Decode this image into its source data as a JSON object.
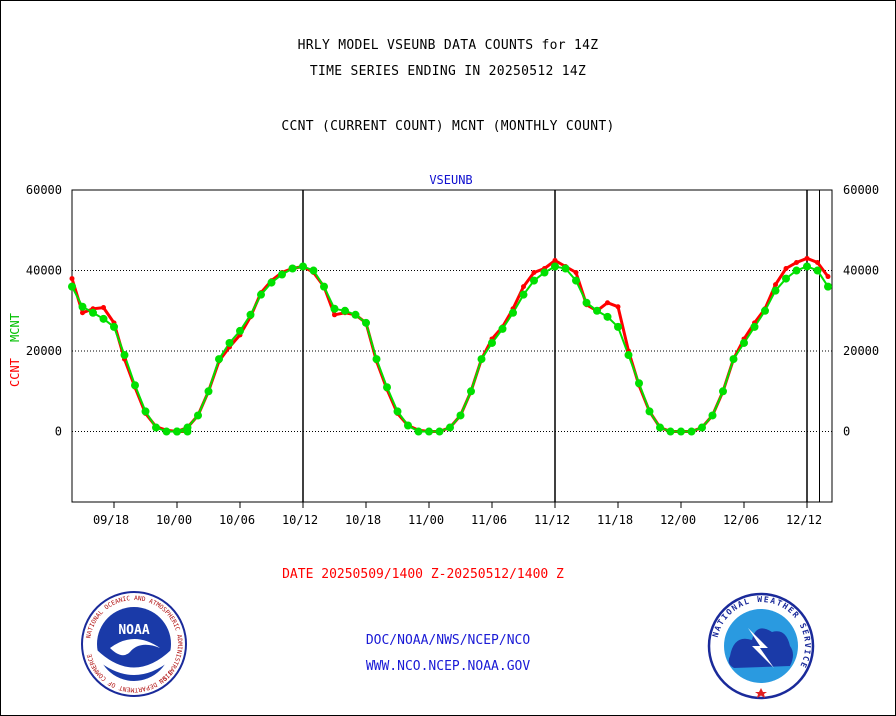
{
  "header": {
    "title_line1": "HRLY MODEL VSEUNB DATA COUNTS for 14Z",
    "title_line2": "TIME SERIES ENDING IN 20250512 14Z",
    "legend_line": "CCNT (CURRENT COUNT) MCNT (MONTHLY COUNT)"
  },
  "chart_data": {
    "type": "line",
    "title": "VSEUNB",
    "ylabel_ccnt": "CCNT",
    "ylabel_mcnt": "MCNT",
    "xlabel": "DATE 20250509/1400 Z-20250512/1400 Z",
    "ylim": [
      -17500,
      60000
    ],
    "y_ticks": [
      0,
      20000,
      40000,
      60000
    ],
    "y_tick_labels": [
      "0",
      "20000",
      "40000",
      "60000"
    ],
    "x_tick_labels": [
      "09/18",
      "10/00",
      "10/06",
      "10/12",
      "10/18",
      "11/00",
      "11/06",
      "11/12",
      "11/18",
      "12/00",
      "12/06",
      "12/12"
    ],
    "day_boundaries": [
      "10/12",
      "11/12",
      "12/12"
    ],
    "grid_y": [
      0,
      20000,
      40000
    ],
    "colors": {
      "ccnt": "#ff0000",
      "mcnt": "#00e000"
    },
    "series": [
      {
        "name": "CCNT",
        "x": [
          "09/14",
          "09/15",
          "09/16",
          "09/17",
          "09/18",
          "09/19",
          "09/20",
          "09/21",
          "09/22",
          "09/23",
          "09/24",
          "09/25",
          "10/00",
          "10/01",
          "10/02",
          "10/03",
          "10/04",
          "10/05",
          "10/06",
          "10/07",
          "10/08",
          "10/09",
          "10/10",
          "10/11",
          "10/12",
          "10/13",
          "10/14",
          "10/15",
          "10/16",
          "10/17",
          "10/18",
          "10/19",
          "10/20",
          "10/21",
          "10/22",
          "10/23",
          "11/00",
          "11/01",
          "11/02",
          "11/03",
          "11/04",
          "11/05",
          "11/06",
          "11/07",
          "11/08",
          "11/09",
          "11/10",
          "11/11",
          "11/12",
          "11/13",
          "11/14",
          "11/15",
          "11/16",
          "11/17",
          "11/18",
          "11/19",
          "11/20",
          "11/21",
          "11/22",
          "11/23",
          "12/00",
          "12/01",
          "12/02",
          "12/03",
          "12/04",
          "12/05",
          "12/06",
          "12/07",
          "12/08",
          "12/09",
          "12/10",
          "12/11",
          "12/12",
          "12/13",
          "12/14"
        ],
        "values": [
          38000,
          29500,
          30500,
          30800,
          27000,
          18000,
          11000,
          4500,
          1200,
          300,
          0,
          0,
          0,
          1000,
          4000,
          10000,
          17500,
          21000,
          24000,
          28500,
          34500,
          37500,
          39500,
          40500,
          41000,
          39500,
          36000,
          29000,
          29500,
          29000,
          27000,
          17500,
          10500,
          4500,
          1500,
          300,
          0,
          0,
          1000,
          4000,
          10000,
          18000,
          23000,
          26000,
          30500,
          36000,
          39500,
          40500,
          42500,
          41000,
          39500,
          31500,
          30000,
          32000,
          31000,
          20000,
          11500,
          5000,
          1000,
          0,
          0,
          0,
          1000,
          4000,
          10000,
          18000,
          23000,
          27000,
          30500,
          36500,
          40500,
          42000,
          43000,
          42000,
          38500
        ]
      },
      {
        "name": "MCNT",
        "x": [
          "09/14",
          "09/15",
          "09/16",
          "09/17",
          "09/18",
          "09/19",
          "09/20",
          "09/21",
          "09/22",
          "09/23",
          "09/24",
          "09/25",
          "10/00",
          "10/01",
          "10/02",
          "10/03",
          "10/04",
          "10/05",
          "10/06",
          "10/07",
          "10/08",
          "10/09",
          "10/10",
          "10/11",
          "10/12",
          "10/13",
          "10/14",
          "10/15",
          "10/16",
          "10/17",
          "10/18",
          "10/19",
          "10/20",
          "10/21",
          "10/22",
          "10/23",
          "11/00",
          "11/01",
          "11/02",
          "11/03",
          "11/04",
          "11/05",
          "11/06",
          "11/07",
          "11/08",
          "11/09",
          "11/10",
          "11/11",
          "11/12",
          "11/13",
          "11/14",
          "11/15",
          "11/16",
          "11/17",
          "11/18",
          "11/19",
          "11/20",
          "11/21",
          "11/22",
          "11/23",
          "12/00",
          "12/01",
          "12/02",
          "12/03",
          "12/04",
          "12/05",
          "12/06",
          "12/07",
          "12/08",
          "12/09",
          "12/10",
          "12/11",
          "12/12",
          "12/13",
          "12/14"
        ],
        "values": [
          36000,
          31000,
          29500,
          28000,
          26000,
          19000,
          11500,
          5000,
          1000,
          0,
          0,
          0,
          0,
          1000,
          4000,
          10000,
          18000,
          22000,
          25000,
          29000,
          34000,
          37000,
          39000,
          40500,
          41000,
          40000,
          36000,
          30500,
          30000,
          29000,
          27000,
          18000,
          11000,
          5000,
          1500,
          0,
          0,
          0,
          1000,
          4000,
          10000,
          18000,
          22000,
          25500,
          29500,
          34000,
          37500,
          39500,
          41000,
          40500,
          37500,
          32000,
          30000,
          28500,
          26000,
          19000,
          12000,
          5000,
          1000,
          0,
          0,
          0,
          1000,
          4000,
          10000,
          18000,
          22000,
          26000,
          30000,
          35000,
          38000,
          40000,
          41000,
          40000,
          36000
        ]
      }
    ]
  },
  "footer": {
    "link1": "DOC/NOAA/NWS/NCEP/NCO",
    "link2": "WWW.NCO.NCEP.NOAA.GOV"
  },
  "logos": {
    "noaa_text": "NOAA",
    "noaa_ring_text": "NATIONAL OCEANIC AND ATMOSPHERIC ADMINISTRATION",
    "noaa_ring_bottom": "U.S. DEPARTMENT OF COMMERCE",
    "nws_ring_text": "NATIONAL WEATHER SERVICE"
  }
}
